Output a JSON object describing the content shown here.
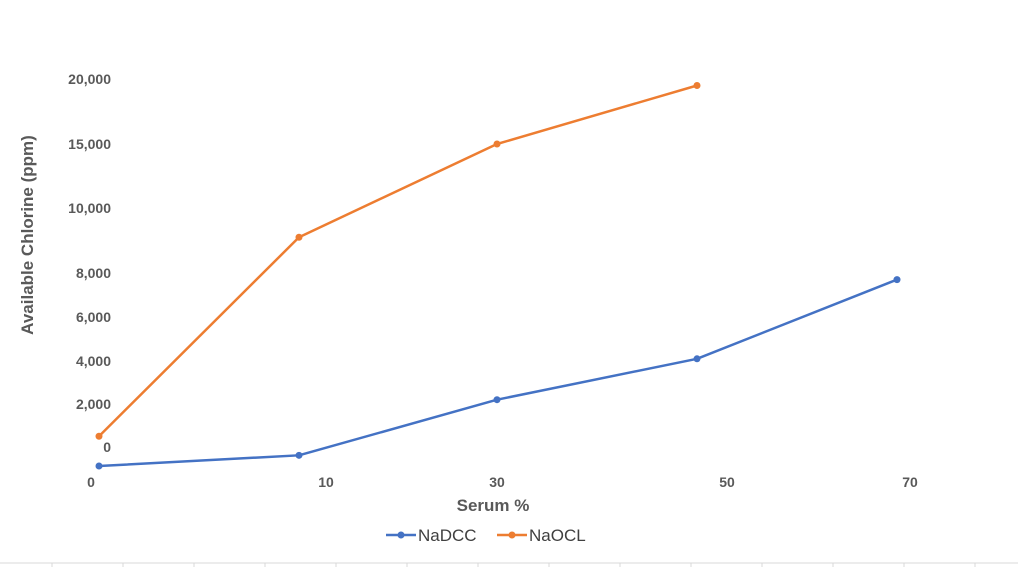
{
  "chart_data": {
    "type": "line",
    "title": "",
    "xlabel": "Serum %",
    "ylabel": "Available Chlorine (ppm)",
    "x": [
      0,
      10,
      30,
      50,
      70
    ],
    "x_tick_labels": [
      "0",
      "10",
      "30",
      "50",
      "70"
    ],
    "y_tick_labels": [
      "0",
      "2,000",
      "4,000",
      "6,000",
      "8,000",
      "10,000",
      "15,000",
      "20,000"
    ],
    "grid": false,
    "legend_position": "bottom",
    "series": [
      {
        "name": "NaDCC",
        "color": "#4472C4",
        "values": [
          -800,
          -350,
          2200,
          4100,
          7700
        ]
      },
      {
        "name": "NaOCL",
        "color": "#ED7D31",
        "values": [
          500,
          9100,
          15000,
          19500,
          null
        ]
      }
    ]
  }
}
